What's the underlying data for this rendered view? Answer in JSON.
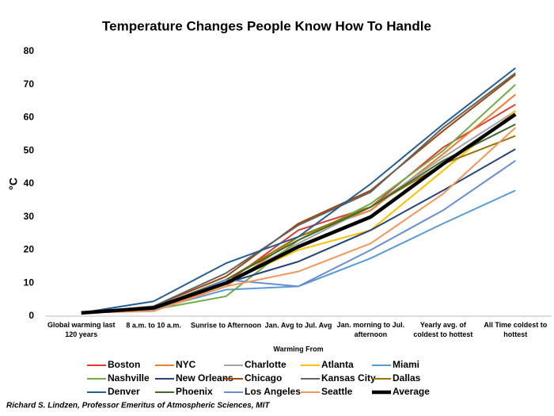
{
  "chart_data": {
    "type": "line",
    "title": "Temperature Changes People Know How To Handle",
    "y_label": "°C",
    "x_label": "Warming From",
    "footer": "Richard S. Lindzen, Professor Emeritus of Atmospheric Sciences, MIT",
    "categories": [
      "Global warming last 120 years",
      "8 a.m. to 10 a.m.",
      "Sunrise to Afternoon",
      "Jan. Avg to Jul. Avg",
      "Jan. morning to Jul. afternoon",
      "Yearly avg. of coldest to hottest",
      "All Time coldest to hottest"
    ],
    "ylim": [
      0,
      80
    ],
    "yticks": [
      0,
      10,
      20,
      30,
      40,
      50,
      60,
      70,
      80
    ],
    "series": [
      {
        "name": "Boston",
        "color": "#e03c31",
        "values": [
          1,
          2.5,
          10,
          26,
          33,
          51,
          64
        ]
      },
      {
        "name": "NYC",
        "color": "#ed7d31",
        "values": [
          1,
          2,
          9,
          24,
          32,
          49,
          67
        ]
      },
      {
        "name": "Charlotte",
        "color": "#a5a5a5",
        "values": [
          1,
          2.5,
          10,
          22,
          33,
          48,
          62
        ]
      },
      {
        "name": "Atlanta",
        "color": "#ffc000",
        "values": [
          1,
          2.5,
          10,
          20,
          26,
          44,
          62
        ]
      },
      {
        "name": "Miami",
        "color": "#5b9bd5",
        "values": [
          1,
          2,
          8,
          9,
          17.5,
          28,
          38
        ]
      },
      {
        "name": "Nashville",
        "color": "#70ad47",
        "values": [
          1,
          2,
          6,
          23,
          34,
          50,
          70
        ]
      },
      {
        "name": "New Orleans",
        "color": "#264478",
        "values": [
          1,
          2.5,
          10,
          16.5,
          26,
          38,
          50.5
        ]
      },
      {
        "name": "Chicago",
        "color": "#9e480e",
        "values": [
          1,
          3,
          12,
          28,
          38,
          56,
          73
        ]
      },
      {
        "name": "Kansas City",
        "color": "#636363",
        "values": [
          1,
          3,
          13,
          27.5,
          37.5,
          57,
          73.5
        ]
      },
      {
        "name": "Dallas",
        "color": "#997300",
        "values": [
          1,
          2.5,
          11,
          24,
          33,
          46,
          54.5
        ]
      },
      {
        "name": "Denver",
        "color": "#255e91",
        "values": [
          1,
          4.5,
          16,
          24,
          40,
          58,
          75
        ]
      },
      {
        "name": "Phoenix",
        "color": "#43682b",
        "values": [
          1,
          2.5,
          11,
          23,
          33,
          47,
          58
        ]
      },
      {
        "name": "Los Angeles",
        "color": "#698ed0",
        "values": [
          1,
          2,
          11,
          9,
          20,
          32,
          47
        ]
      },
      {
        "name": "Seattle",
        "color": "#f1975a",
        "values": [
          1,
          1.5,
          9,
          13.5,
          22,
          37,
          57
        ]
      },
      {
        "name": "Average",
        "color": "#000000",
        "values": [
          1,
          2.5,
          10,
          21,
          30,
          46,
          61
        ]
      }
    ]
  }
}
